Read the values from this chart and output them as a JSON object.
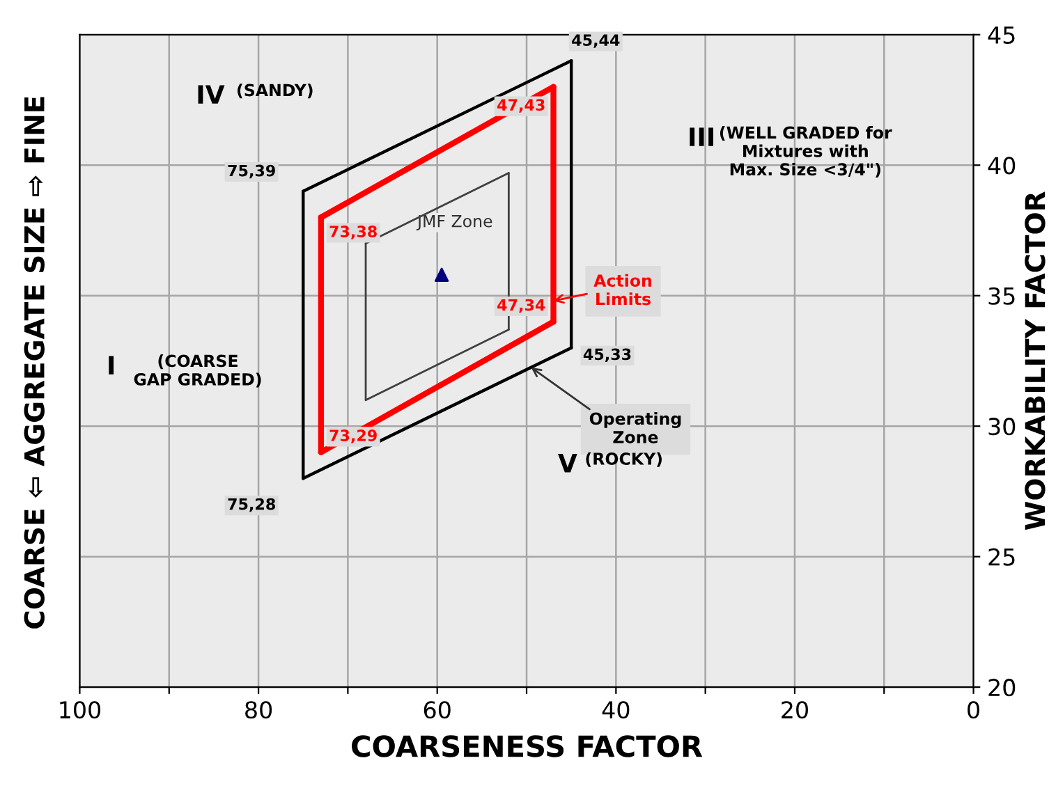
{
  "chart_data": {
    "type": "line",
    "xlabel": "COARSENESS FACTOR",
    "ylabel": "WORKABILITY FACTOR",
    "xlim": [
      100,
      0
    ],
    "xticks": [
      100,
      {
        "value": 90,
        "label": null
      },
      80,
      {
        "value": 70,
        "label": null
      },
      60,
      {
        "value": 50,
        "label": null
      },
      40,
      {
        "value": 30,
        "label": null
      },
      20,
      {
        "value": 10,
        "label": null
      },
      0
    ],
    "ylim": [
      20,
      45
    ],
    "yticks": [
      20,
      25,
      30,
      35,
      40,
      45
    ],
    "grid": true,
    "series": [
      {
        "color": "#000000",
        "x": [
          75,
          45
        ],
        "values": [
          39,
          44
        ]
      },
      {
        "color": "#000000",
        "x": [
          45,
          45
        ],
        "values": [
          44,
          33
        ]
      },
      {
        "color": "#000000",
        "x": [
          45,
          75
        ],
        "values": [
          33,
          28
        ]
      },
      {
        "color": "#000000",
        "x": [
          75,
          75
        ],
        "values": [
          28,
          39
        ]
      },
      {
        "color": "#ff0000",
        "x": [
          73,
          47
        ],
        "values": [
          38,
          43
        ]
      },
      {
        "color": "#ff0000",
        "x": [
          47,
          47
        ],
        "values": [
          43,
          34
        ]
      },
      {
        "color": "#ff0000",
        "x": [
          47,
          73
        ],
        "values": [
          34,
          29
        ]
      },
      {
        "color": "#ff0000",
        "x": [
          73,
          73
        ],
        "values": [
          29,
          38
        ]
      },
      {
        "color": "#404040",
        "x": [
          68,
          52
        ],
        "values": [
          37,
          39.7
        ]
      },
      {
        "color": "#404040",
        "x": [
          52,
          52
        ],
        "values": [
          39.7,
          33.7
        ]
      },
      {
        "color": "#404040",
        "x": [
          52,
          68
        ],
        "values": [
          33.7,
          31
        ]
      },
      {
        "color": "#404040",
        "x": [
          68,
          68
        ],
        "values": [
          31,
          37
        ]
      },
      {
        "type": "scatter",
        "color": "#00007f",
        "marker": "triangle",
        "x": [
          59.5
        ],
        "values": [
          35.8
        ]
      }
    ],
    "annotations": [
      "COARSE ⇦ AGGREGATE SIZE ⇨ FINE",
      {
        "text": "75,39",
        "x": 75,
        "y": 39
      },
      {
        "text": "45,44",
        "x": 45,
        "y": 44
      },
      {
        "text": "45,33",
        "x": 45,
        "y": 33
      },
      {
        "text": "75,28",
        "x": 75,
        "y": 28
      },
      {
        "text": "73,38",
        "x": 73,
        "y": 38
      },
      {
        "text": "47,43",
        "x": 47,
        "y": 43
      },
      {
        "text": "47,34",
        "x": 47,
        "y": 34
      },
      {
        "text": "73,29",
        "x": 73,
        "y": 29
      },
      {
        "text": "Action\nLimits",
        "x": 47,
        "y": 34.8
      },
      {
        "text": "Operating\nZone",
        "x": 49.5,
        "y": 32.25
      },
      "JMF Zone",
      "IV",
      "(SANDY)",
      "III",
      "(WELL GRADED for\nMixtures with\nMax. Size <3/4\")",
      "I",
      "(COARSE\nGAP GRADED)",
      "V",
      "(ROCKY)"
    ]
  }
}
